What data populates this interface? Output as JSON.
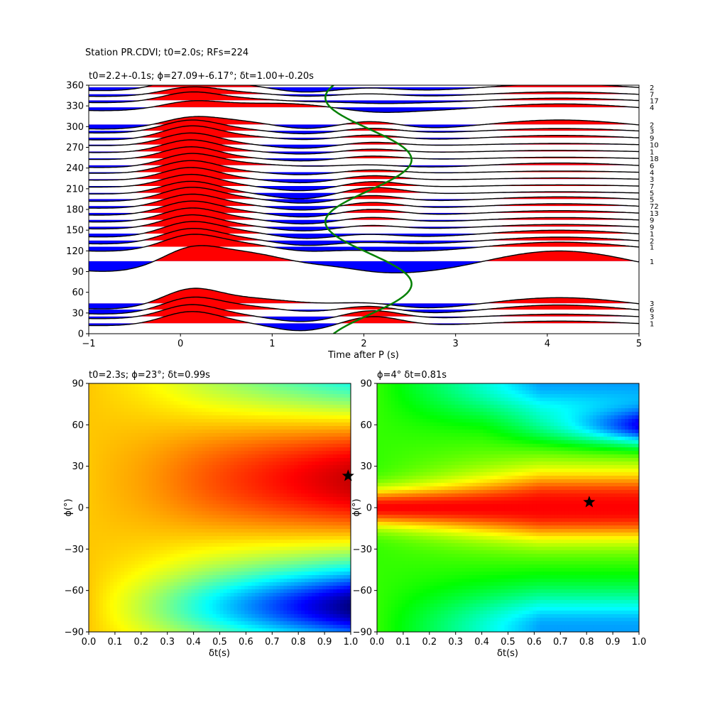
{
  "suptitle": "Station PR.CDVI; t0=2.0s; RFs=224",
  "chart_data": [
    {
      "type": "line",
      "title": "t0=2.2+-0.1s; ϕ=27.09+-6.17°; δt=1.00+-0.20s",
      "xlabel": "Time after P (s)",
      "ylabel": "",
      "xlim": [
        -1,
        5
      ],
      "ylim": [
        0,
        360
      ],
      "xticks": [
        -1,
        0,
        1,
        2,
        3,
        4,
        5
      ],
      "yticks": [
        0,
        30,
        60,
        90,
        120,
        150,
        180,
        210,
        240,
        270,
        300,
        330,
        360
      ],
      "fill_positive_color": "#ff0000",
      "fill_negative_color": "#0000ff",
      "trace_color": "#000000",
      "curve_color": "#008000",
      "series": [
        {
          "baz": 357,
          "count": "2",
          "a0": 0.9,
          "a1": -0.6,
          "a2": 0.2,
          "a3": 0.3
        },
        {
          "baz": 347,
          "count": "7",
          "a0": 0.6,
          "a1": -0.3,
          "a2": 0.2,
          "a3": 0.2
        },
        {
          "baz": 338,
          "count": "17",
          "a0": 0.7,
          "a1": -0.2,
          "a2": -0.1,
          "a3": 0.2
        },
        {
          "baz": 328,
          "count": "4",
          "a0": 0.5,
          "a1": 0.1,
          "a2": -0.2,
          "a3": 0.3
        },
        {
          "baz": 303,
          "count": "2",
          "a0": 0.6,
          "a1": -0.6,
          "a2": 0.6,
          "a3": 0.4
        },
        {
          "baz": 294,
          "count": "3",
          "a0": 0.9,
          "a1": -0.4,
          "a2": 0.4,
          "a3": 0.2
        },
        {
          "baz": 284,
          "count": "9",
          "a0": 1.0,
          "a1": -0.3,
          "a2": 0.4,
          "a3": 0.2
        },
        {
          "baz": 274,
          "count": "10",
          "a0": 1.0,
          "a1": -0.4,
          "a2": 0.3,
          "a3": 0.1
        },
        {
          "baz": 264,
          "count": "1",
          "a0": 1.0,
          "a1": -0.3,
          "a2": 0.3,
          "a3": 0.1
        },
        {
          "baz": 254,
          "count": "18",
          "a0": 1.0,
          "a1": -0.3,
          "a2": 0.3,
          "a3": 0.1
        },
        {
          "baz": 244,
          "count": "6",
          "a0": 1.0,
          "a1": -0.2,
          "a2": 0.2,
          "a3": 0.2
        },
        {
          "baz": 234,
          "count": "4",
          "a0": 1.0,
          "a1": -0.3,
          "a2": 0.3,
          "a3": 0.1
        },
        {
          "baz": 224,
          "count": "3",
          "a0": 1.0,
          "a1": -0.4,
          "a2": 0.4,
          "a3": 0.1
        },
        {
          "baz": 214,
          "count": "7",
          "a0": 1.0,
          "a1": -0.5,
          "a2": 0.5,
          "a3": 0.1
        },
        {
          "baz": 204,
          "count": "5",
          "a0": 1.0,
          "a1": -0.6,
          "a2": 0.6,
          "a3": 0.1
        },
        {
          "baz": 195,
          "count": "5",
          "a0": 1.0,
          "a1": -0.5,
          "a2": 0.5,
          "a3": 0.2
        },
        {
          "baz": 185,
          "count": "72",
          "a0": 1.0,
          "a1": -0.5,
          "a2": 0.5,
          "a3": 0.2
        },
        {
          "baz": 175,
          "count": "13",
          "a0": 1.0,
          "a1": -0.5,
          "a2": 0.5,
          "a3": 0.2
        },
        {
          "baz": 165,
          "count": "9",
          "a0": 1.0,
          "a1": -0.5,
          "a2": 0.4,
          "a3": 0.2
        },
        {
          "baz": 155,
          "count": "9",
          "a0": 1.0,
          "a1": -0.5,
          "a2": 0.3,
          "a3": 0.2
        },
        {
          "baz": 145,
          "count": "1",
          "a0": 1.0,
          "a1": -0.6,
          "a2": 0.2,
          "a3": 0.3
        },
        {
          "baz": 135,
          "count": "2",
          "a0": 1.0,
          "a1": -0.6,
          "a2": 0.1,
          "a3": 0.3
        },
        {
          "baz": 126,
          "count": "1",
          "a0": 1.0,
          "a1": -0.6,
          "a2": 0.0,
          "a3": 0.4
        },
        {
          "baz": 105,
          "count": "1",
          "a0": 1.1,
          "a1": -0.6,
          "a2": -0.2,
          "a3": 0.9
        },
        {
          "baz": 44,
          "count": "3",
          "a0": 1.2,
          "a1": -0.2,
          "a2": 0.4,
          "a3": 0.5
        },
        {
          "baz": 35,
          "count": "6",
          "a0": 1.0,
          "a1": -0.4,
          "a2": 0.6,
          "a3": 0.4
        },
        {
          "baz": 25,
          "count": "3",
          "a0": 1.0,
          "a1": -0.6,
          "a2": 0.7,
          "a3": 0.2
        },
        {
          "baz": 15,
          "count": "1",
          "a0": 1.0,
          "a1": -0.8,
          "a2": 0.8,
          "a3": 0.2
        }
      ],
      "curve": {
        "t0": 2.05,
        "amplitude": 0.47,
        "phi": 27
      }
    },
    {
      "type": "heatmap",
      "title": "t0=2.3s; ϕ=23°; δt=0.99s",
      "xlabel": "δt(s)",
      "ylabel": "ϕ(°)",
      "xlim": [
        0,
        1
      ],
      "ylim": [
        -90,
        90
      ],
      "xticks": [
        0.0,
        0.1,
        0.2,
        0.3,
        0.4,
        0.5,
        0.6,
        0.7,
        0.8,
        0.9,
        1.0
      ],
      "yticks": [
        -90,
        -60,
        -30,
        0,
        30,
        60,
        90
      ],
      "colormap": "jet",
      "marker": {
        "dt": 0.99,
        "phi": 23,
        "symbol": "star"
      }
    },
    {
      "type": "heatmap",
      "title": "ϕ=4° δt=0.81s",
      "xlabel": "δt(s)",
      "ylabel": "ϕ(°)",
      "xlim": [
        0,
        1
      ],
      "ylim": [
        -90,
        90
      ],
      "xticks": [
        0.0,
        0.1,
        0.2,
        0.3,
        0.4,
        0.5,
        0.6,
        0.7,
        0.8,
        0.9,
        1.0
      ],
      "yticks": [
        -90,
        -60,
        -30,
        0,
        30,
        60,
        90
      ],
      "colormap": "hsv",
      "marker": {
        "dt": 0.81,
        "phi": 4,
        "symbol": "star"
      }
    }
  ]
}
